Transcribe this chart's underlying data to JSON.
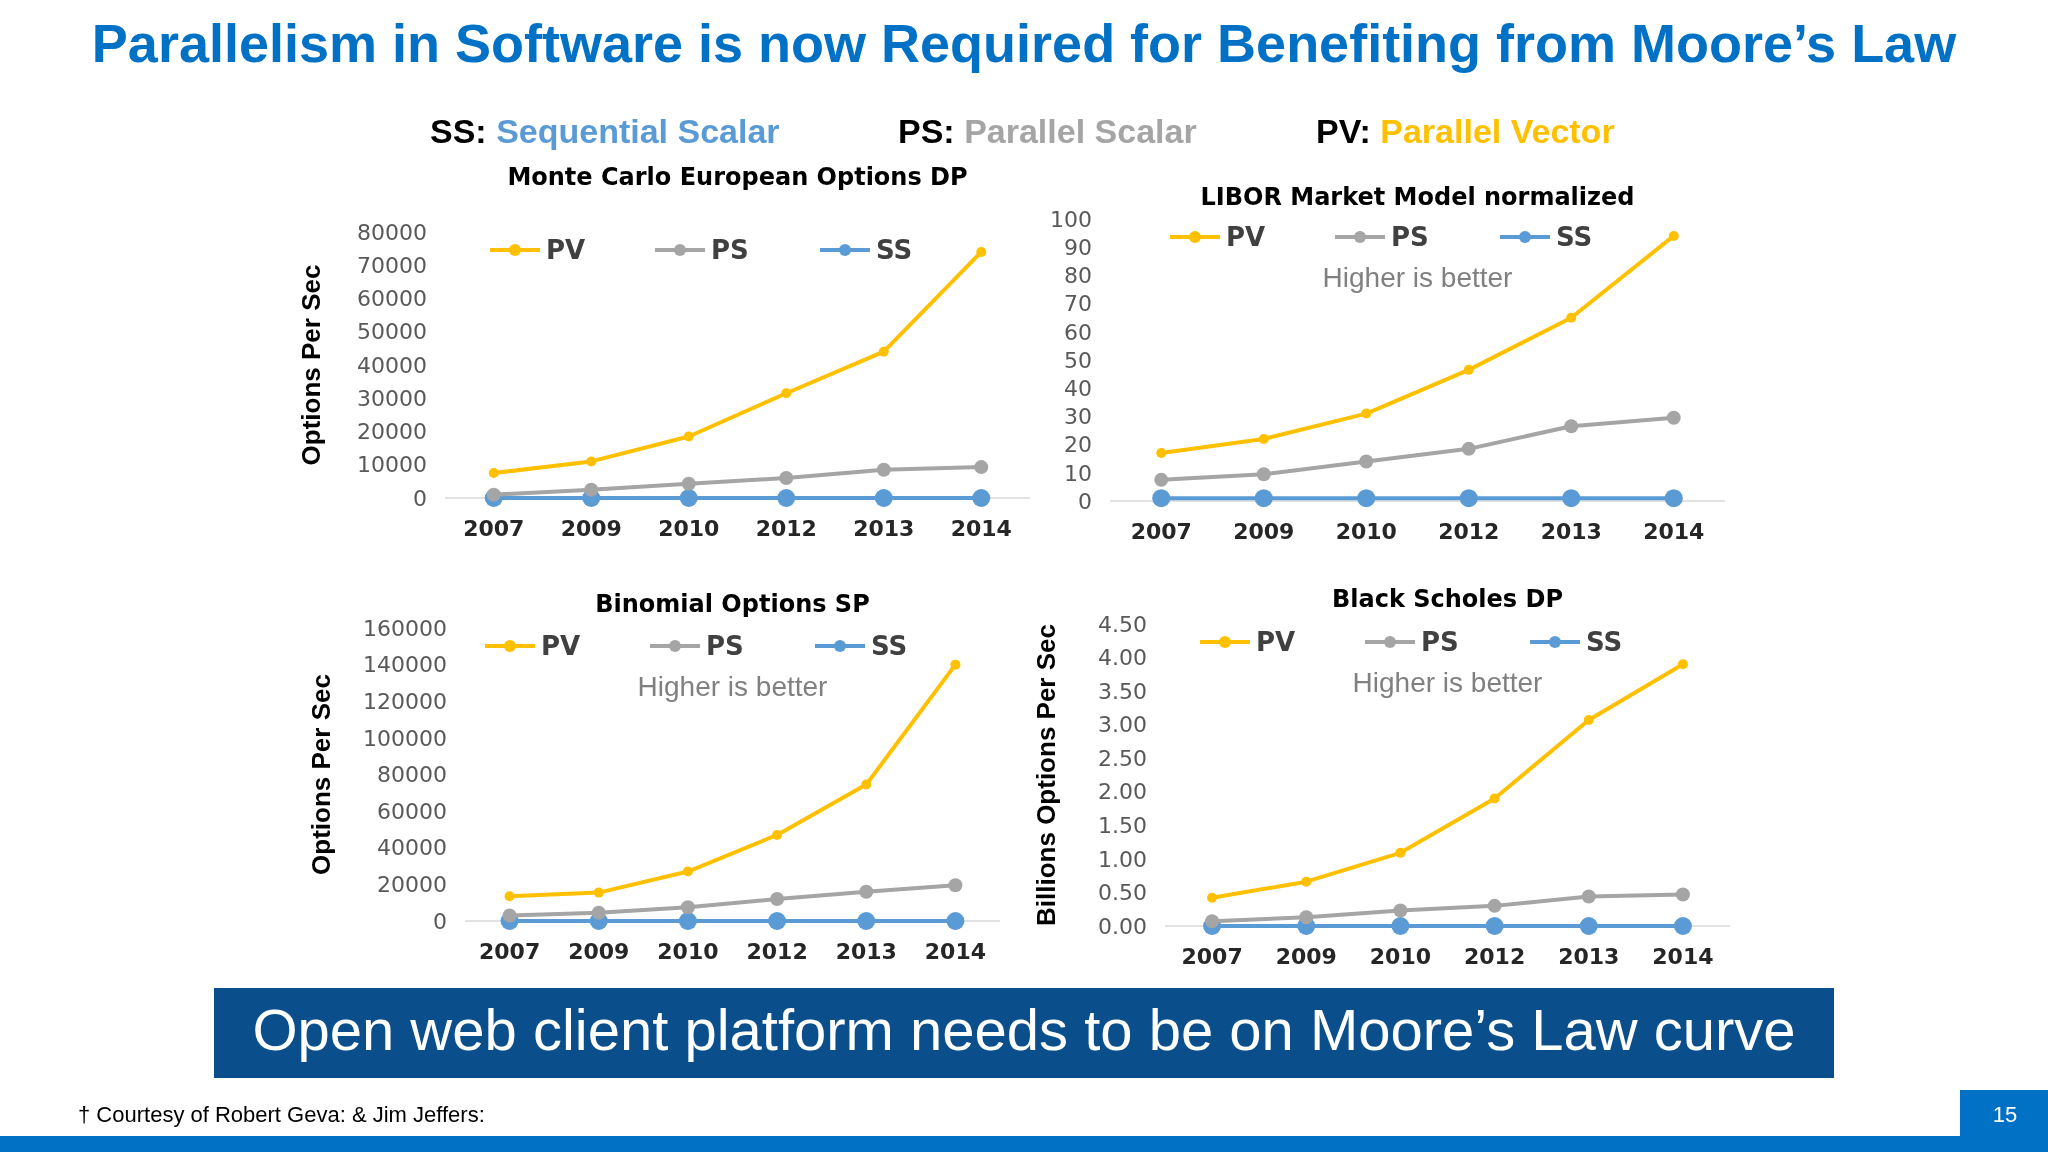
{
  "chart_data": [
    {
      "type": "other",
      "title": "Parallelism in Software is now Required for Benefiting from Moore’s Law",
      "annotations": [
        "SS: Sequential Scalar",
        "PS: Parallel Scalar",
        "PV: Parallel Vector",
        "Open web client platform needs to be on Moore’s Law curve",
        "† Courtesy of Robert Geva: & Jim Jeffers:",
        "15"
      ]
    },
    {
      "type": "line",
      "title": "Monte Carlo European Options DP",
      "ylabel": "Options Per Sec",
      "categories": [
        "2007",
        "2009",
        "2010",
        "2012",
        "2013",
        "2014"
      ],
      "ylim": [
        0,
        80000
      ],
      "yticks": [
        0,
        10000,
        20000,
        30000,
        40000,
        50000,
        60000,
        70000,
        80000
      ],
      "legend": "top",
      "marker": "circle",
      "series": [
        {
          "name": "PV",
          "color": "#ffc000",
          "values": [
            7500,
            11000,
            18500,
            31500,
            44000,
            74000
          ]
        },
        {
          "name": "PS",
          "color": "#a5a5a5",
          "values": [
            1000,
            2500,
            4300,
            6000,
            8500,
            9300
          ]
        },
        {
          "name": "SS",
          "color": "#5b9bd5",
          "values": [
            0,
            0,
            0,
            0,
            0,
            0
          ]
        }
      ]
    },
    {
      "type": "line",
      "title": "LIBOR Market Model normalized",
      "categories": [
        "2007",
        "2009",
        "2010",
        "2012",
        "2013",
        "2014"
      ],
      "ylim": [
        0,
        100
      ],
      "yticks": [
        0,
        10,
        20,
        30,
        40,
        50,
        60,
        70,
        80,
        90,
        100
      ],
      "legend": "top",
      "marker": "circle",
      "annotations": [
        "Higher is better"
      ],
      "series": [
        {
          "name": "PV",
          "color": "#ffc000",
          "values": [
            17,
            22,
            31,
            46.5,
            65,
            94
          ]
        },
        {
          "name": "PS",
          "color": "#a5a5a5",
          "values": [
            7.5,
            9.5,
            14,
            18.5,
            26.5,
            29.5
          ]
        },
        {
          "name": "SS",
          "color": "#5b9bd5",
          "values": [
            1,
            1,
            1,
            1,
            1,
            1
          ]
        }
      ]
    },
    {
      "type": "line",
      "title": "Binomial Options SP",
      "ylabel": "Options Per Sec",
      "categories": [
        "2007",
        "2009",
        "2010",
        "2012",
        "2013",
        "2014"
      ],
      "ylim": [
        0,
        160000
      ],
      "yticks": [
        0,
        20000,
        40000,
        60000,
        80000,
        100000,
        120000,
        140000,
        160000
      ],
      "legend": "top",
      "marker": "circle",
      "annotations": [
        "Higher is better"
      ],
      "series": [
        {
          "name": "PV",
          "color": "#ffc000",
          "values": [
            13500,
            15500,
            27000,
            47000,
            74500,
            140000
          ]
        },
        {
          "name": "PS",
          "color": "#a5a5a5",
          "values": [
            3000,
            4500,
            7500,
            12000,
            16000,
            19500
          ]
        },
        {
          "name": "SS",
          "color": "#5b9bd5",
          "values": [
            0,
            0,
            0,
            0,
            0,
            0
          ]
        }
      ]
    },
    {
      "type": "line",
      "title": "Black Scholes DP",
      "ylabel": "Billions Options Per Sec",
      "categories": [
        "2007",
        "2009",
        "2010",
        "2012",
        "2013",
        "2014"
      ],
      "ylim": [
        0,
        4.5
      ],
      "yticks": [
        {
          "value": 0,
          "label": "0.00"
        },
        {
          "value": 0.5,
          "label": "0.50"
        },
        {
          "value": 1,
          "label": "1.00"
        },
        {
          "value": 1.5,
          "label": "1.50"
        },
        {
          "value": 2,
          "label": "2.00"
        },
        {
          "value": 2.5,
          "label": "2.50"
        },
        {
          "value": 3,
          "label": "3.00"
        },
        {
          "value": 3.5,
          "label": "3.50"
        },
        {
          "value": 4,
          "label": "4.00"
        },
        {
          "value": 4.5,
          "label": "4.50"
        }
      ],
      "legend": "top",
      "marker": "circle",
      "annotations": [
        "Higher is better"
      ],
      "series": [
        {
          "name": "PV",
          "color": "#ffc000",
          "values": [
            0.42,
            0.66,
            1.09,
            1.9,
            3.07,
            3.9
          ]
        },
        {
          "name": "PS",
          "color": "#a5a5a5",
          "values": [
            0.07,
            0.13,
            0.23,
            0.3,
            0.44,
            0.47
          ]
        },
        {
          "name": "SS",
          "color": "#5b9bd5",
          "values": [
            0,
            0,
            0,
            0,
            0,
            0
          ]
        }
      ]
    }
  ]
}
